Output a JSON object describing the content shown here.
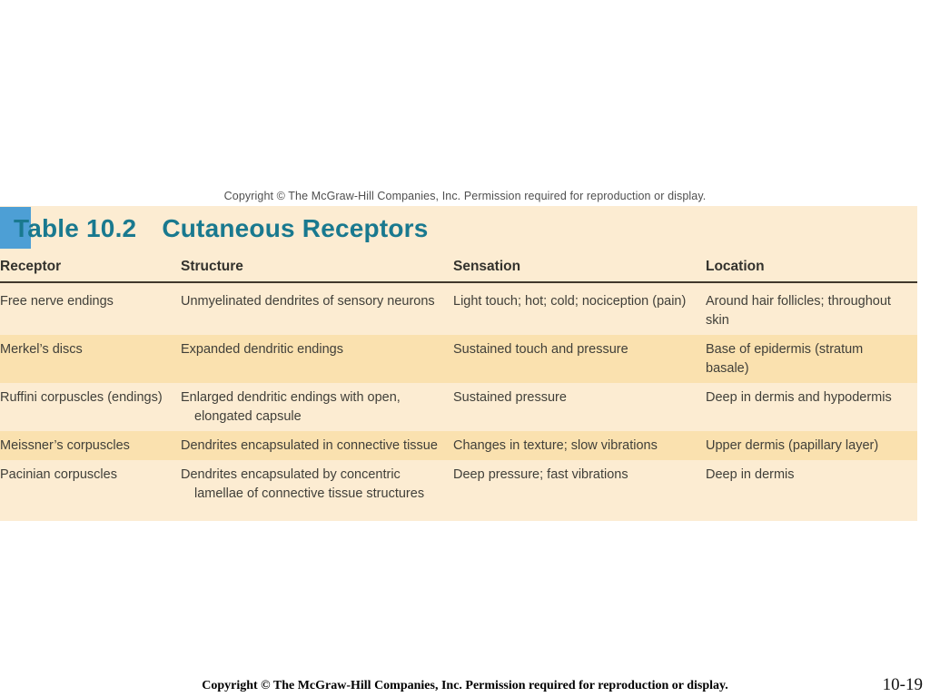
{
  "page": {
    "top_copyright": "Copyright © The McGraw-Hill Companies, Inc. Permission required for reproduction or display.",
    "bottom_copyright": "Copyright © The McGraw-Hill Companies, Inc. Permission required for reproduction or display.",
    "page_number": "10-19"
  },
  "table": {
    "label": "Table 10.2",
    "title": "Cutaneous Receptors",
    "headers": [
      "Receptor",
      "Structure",
      "Sensation",
      "Location"
    ],
    "rows": [
      {
        "receptor": "Free nerve endings",
        "structure": [
          "Unmyelinated dendrites of sensory neurons"
        ],
        "sensation": "Light touch; hot; cold; nociception (pain)",
        "location": "Around hair follicles; throughout skin"
      },
      {
        "receptor": "Merkel’s discs",
        "structure": [
          "Expanded dendritic endings"
        ],
        "sensation": "Sustained touch and pressure",
        "location": "Base of epidermis (stratum basale)"
      },
      {
        "receptor": "Ruffini corpuscles (endings)",
        "structure": [
          "Enlarged dendritic endings with open,",
          "elongated capsule"
        ],
        "sensation": "Sustained pressure",
        "location": "Deep in dermis and hypodermis"
      },
      {
        "receptor": "Meissner’s corpuscles",
        "structure": [
          "Dendrites encapsulated in connective tissue"
        ],
        "sensation": "Changes in texture; slow vibrations",
        "location": "Upper dermis (papillary layer)"
      },
      {
        "receptor": "Pacinian corpuscles",
        "structure": [
          "Dendrites encapsulated by concentric",
          "lamellae of connective tissue structures"
        ],
        "sensation": "Deep pressure; fast vibrations",
        "location": "Deep in dermis"
      }
    ],
    "colors": {
      "panel_bg": "#fcecd2",
      "band_bg": "#fae1af",
      "title_teal": "#19798f",
      "highlight_blue": "#4d9fd5",
      "rule": "#40392c"
    }
  }
}
